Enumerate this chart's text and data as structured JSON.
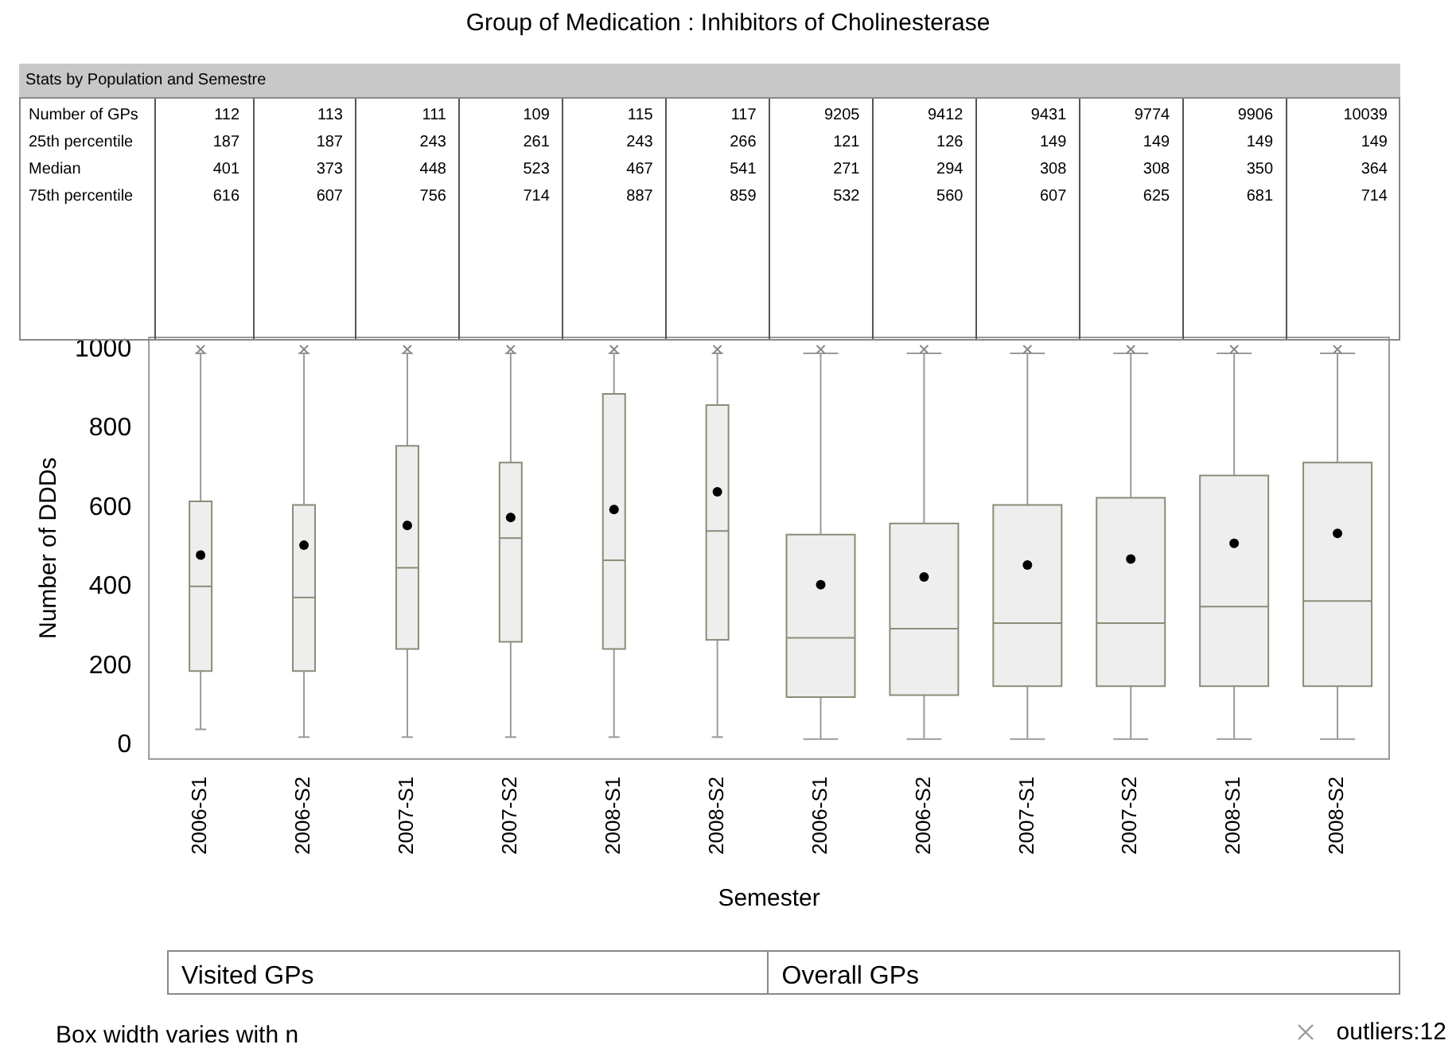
{
  "chart_data": {
    "type": "box",
    "title": "Group of Medication : Inhibitors of Cholinesterase",
    "xlabel": "Semester",
    "ylabel": "Number of DDDs",
    "categories": [
      "2006-S1",
      "2006-S2",
      "2007-S1",
      "2007-S2",
      "2008-S1",
      "2008-S2",
      "2006-S1",
      "2006-S2",
      "2007-S1",
      "2007-S2",
      "2008-S1",
      "2008-S2"
    ],
    "color": "#eeeeee",
    "marker": "cross",
    "grid": false,
    "boxes": [
      {
        "low": 40,
        "q1": 187,
        "median": 401,
        "q3": 616,
        "high": 990,
        "mean": 480,
        "outliers": [
          1000
        ]
      },
      {
        "low": 20,
        "q1": 187,
        "median": 373,
        "q3": 607,
        "high": 990,
        "mean": 505,
        "outliers": [
          1000
        ]
      },
      {
        "low": 20,
        "q1": 243,
        "median": 448,
        "q3": 756,
        "high": 990,
        "mean": 555,
        "outliers": [
          1000
        ]
      },
      {
        "low": 20,
        "q1": 261,
        "median": 523,
        "q3": 714,
        "high": 990,
        "mean": 575,
        "outliers": [
          1000
        ]
      },
      {
        "low": 20,
        "q1": 243,
        "median": 467,
        "q3": 887,
        "high": 990,
        "mean": 595,
        "outliers": [
          1000
        ]
      },
      {
        "low": 20,
        "q1": 266,
        "median": 541,
        "q3": 859,
        "high": 990,
        "mean": 640,
        "outliers": [
          1000
        ]
      },
      {
        "low": 15,
        "q1": 121,
        "median": 271,
        "q3": 532,
        "high": 990,
        "mean": 405,
        "outliers": [
          1000
        ]
      },
      {
        "low": 15,
        "q1": 126,
        "median": 294,
        "q3": 560,
        "high": 990,
        "mean": 425,
        "outliers": [
          1000
        ]
      },
      {
        "low": 15,
        "q1": 149,
        "median": 308,
        "q3": 607,
        "high": 990,
        "mean": 455,
        "outliers": [
          1000
        ]
      },
      {
        "low": 15,
        "q1": 149,
        "median": 308,
        "q3": 625,
        "high": 990,
        "mean": 470,
        "outliers": [
          1000
        ]
      },
      {
        "low": 15,
        "q1": 149,
        "median": 350,
        "q3": 681,
        "high": 990,
        "mean": 510,
        "outliers": [
          1000
        ]
      },
      {
        "low": 15,
        "q1": 149,
        "median": 364,
        "q3": 714,
        "high": 990,
        "mean": 535,
        "outliers": [
          1000
        ]
      }
    ],
    "ylim": [
      -35,
      1030
    ],
    "yticks": [
      0,
      200,
      400,
      600,
      800,
      1000
    ],
    "annotations": [
      "Stats by Population and Semestre",
      "Number of GPs",
      "25th percentile",
      "Median",
      "75th percentile",
      "112",
      "113",
      "111",
      "109",
      "115",
      "117",
      "9205",
      "9412",
      "9431",
      "9774",
      "9906",
      "10039",
      "187",
      "187",
      "243",
      "261",
      "243",
      "266",
      "121",
      "126",
      "149",
      "149",
      "149",
      "149",
      "401",
      "373",
      "448",
      "523",
      "467",
      "541",
      "271",
      "294",
      "308",
      "308",
      "350",
      "364",
      "616",
      "607",
      "756",
      "714",
      "887",
      "859",
      "532",
      "560",
      "607",
      "625",
      "681",
      "714",
      "Visited GPs",
      "Overall GPs",
      "Box width varies with n",
      "outliers:12"
    ]
  }
}
